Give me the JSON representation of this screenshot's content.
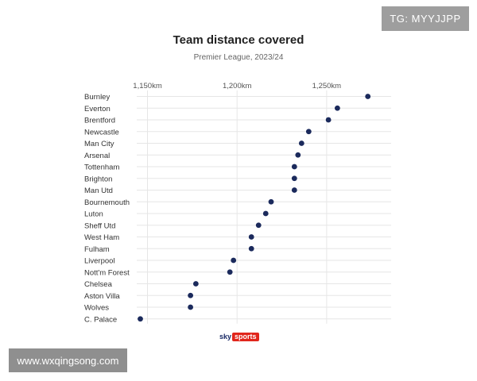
{
  "title": "Team distance covered",
  "subtitle": "Premier League, 2023/24",
  "colors": {
    "dot": "#1b2a5c",
    "grid": "#e6e6e6",
    "text": "#333333"
  },
  "chart_data": {
    "type": "scatter",
    "title": "Team distance covered",
    "subtitle": "Premier League, 2023/24",
    "xlabel": "",
    "ylabel": "",
    "x_ticks": [
      "1,150km",
      "1,200km",
      "1,250km"
    ],
    "x_tick_values": [
      1150,
      1200,
      1250
    ],
    "xlim": [
      1144,
      1286
    ],
    "categories": [
      "Burnley",
      "Everton",
      "Brentford",
      "Newcastle",
      "Man City",
      "Arsenal",
      "Tottenham",
      "Brighton",
      "Man Utd",
      "Bournemouth",
      "Luton",
      "Sheff Utd",
      "West Ham",
      "Fulham",
      "Liverpool",
      "Nott'm Forest",
      "Chelsea",
      "Aston Villa",
      "Wolves",
      "C. Palace"
    ],
    "values": [
      1273,
      1256,
      1251,
      1240,
      1236,
      1234,
      1232,
      1232,
      1232,
      1219,
      1216,
      1212,
      1208,
      1208,
      1198,
      1196,
      1177,
      1174,
      1174,
      1146
    ],
    "grid": true,
    "legend": "none"
  },
  "logo": {
    "sky": "sky",
    "sports": "sports"
  },
  "watermarks": {
    "top_right": "TG: MYYJJPP",
    "bottom_left": "www.wxqingsong.com"
  }
}
